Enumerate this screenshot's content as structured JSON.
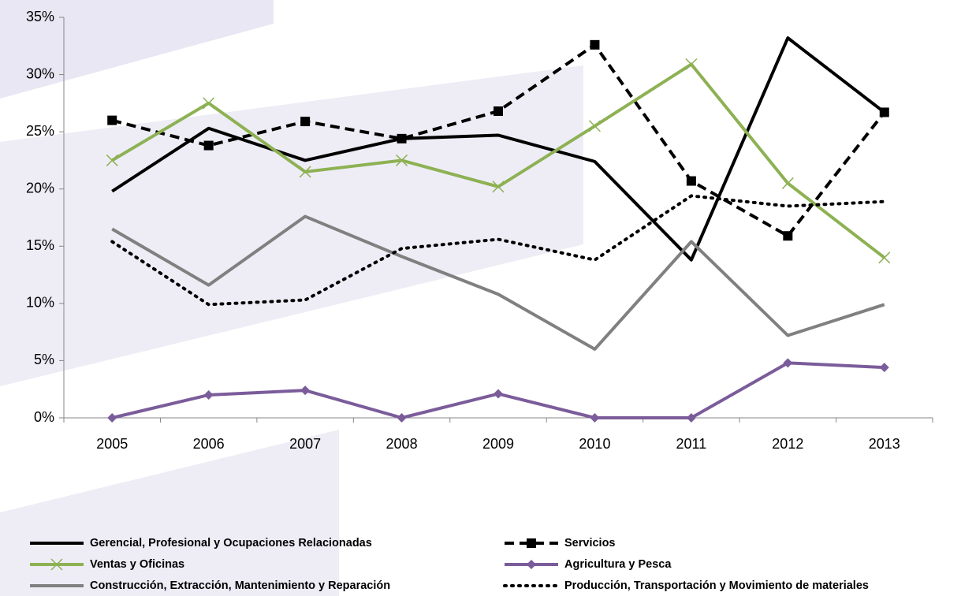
{
  "chart_data": {
    "type": "line",
    "categories": [
      "2005",
      "2006",
      "2007",
      "2008",
      "2009",
      "2010",
      "2011",
      "2012",
      "2013"
    ],
    "ylim": [
      0,
      35
    ],
    "yticks": [
      {
        "value": 0,
        "label": "0%"
      },
      {
        "value": 5,
        "label": "5%"
      },
      {
        "value": 10,
        "label": "10%"
      },
      {
        "value": 15,
        "label": "15%"
      },
      {
        "value": 20,
        "label": "20%"
      },
      {
        "value": 25,
        "label": "25%"
      },
      {
        "value": 30,
        "label": "30%"
      },
      {
        "value": 35,
        "label": "35%"
      }
    ],
    "grid": false,
    "legend": "bottom",
    "series": [
      {
        "name": "Gerencial, Profesional y Ocupaciones Relacionadas",
        "color": "#000000",
        "dash": "solid",
        "values": [
          19.8,
          25.3,
          22.5,
          24.4,
          24.7,
          22.4,
          13.8,
          33.2,
          26.7
        ]
      },
      {
        "name": "Servicios",
        "color": "#000000",
        "dash": "dash",
        "marker": "square",
        "values": [
          26.0,
          23.8,
          25.9,
          24.4,
          26.8,
          32.6,
          20.7,
          15.9,
          26.7
        ]
      },
      {
        "name": "Ventas y Oficinas",
        "color": "#8db153",
        "dash": "solid",
        "marker": "x",
        "values": [
          22.5,
          27.5,
          21.5,
          22.5,
          20.2,
          25.5,
          30.9,
          20.5,
          14.0
        ]
      },
      {
        "name": "Agricultura y Pesca",
        "color": "#7b5c9a",
        "dash": "solid",
        "marker": "diamond",
        "values": [
          0,
          2.0,
          2.4,
          0,
          2.1,
          0,
          0,
          4.8,
          4.4
        ]
      },
      {
        "name": "Construcción, Extracción, Mantenimiento y Reparación",
        "color": "#808080",
        "dash": "solid",
        "values": [
          16.5,
          11.6,
          17.6,
          14.1,
          10.8,
          6.0,
          15.4,
          7.2,
          9.9
        ]
      },
      {
        "name": "Producción, Transportación y Movimiento de materiales",
        "color": "#000000",
        "dash": "dot",
        "values": [
          15.4,
          9.9,
          10.3,
          14.8,
          15.6,
          13.8,
          19.4,
          18.5,
          18.9
        ]
      }
    ]
  }
}
